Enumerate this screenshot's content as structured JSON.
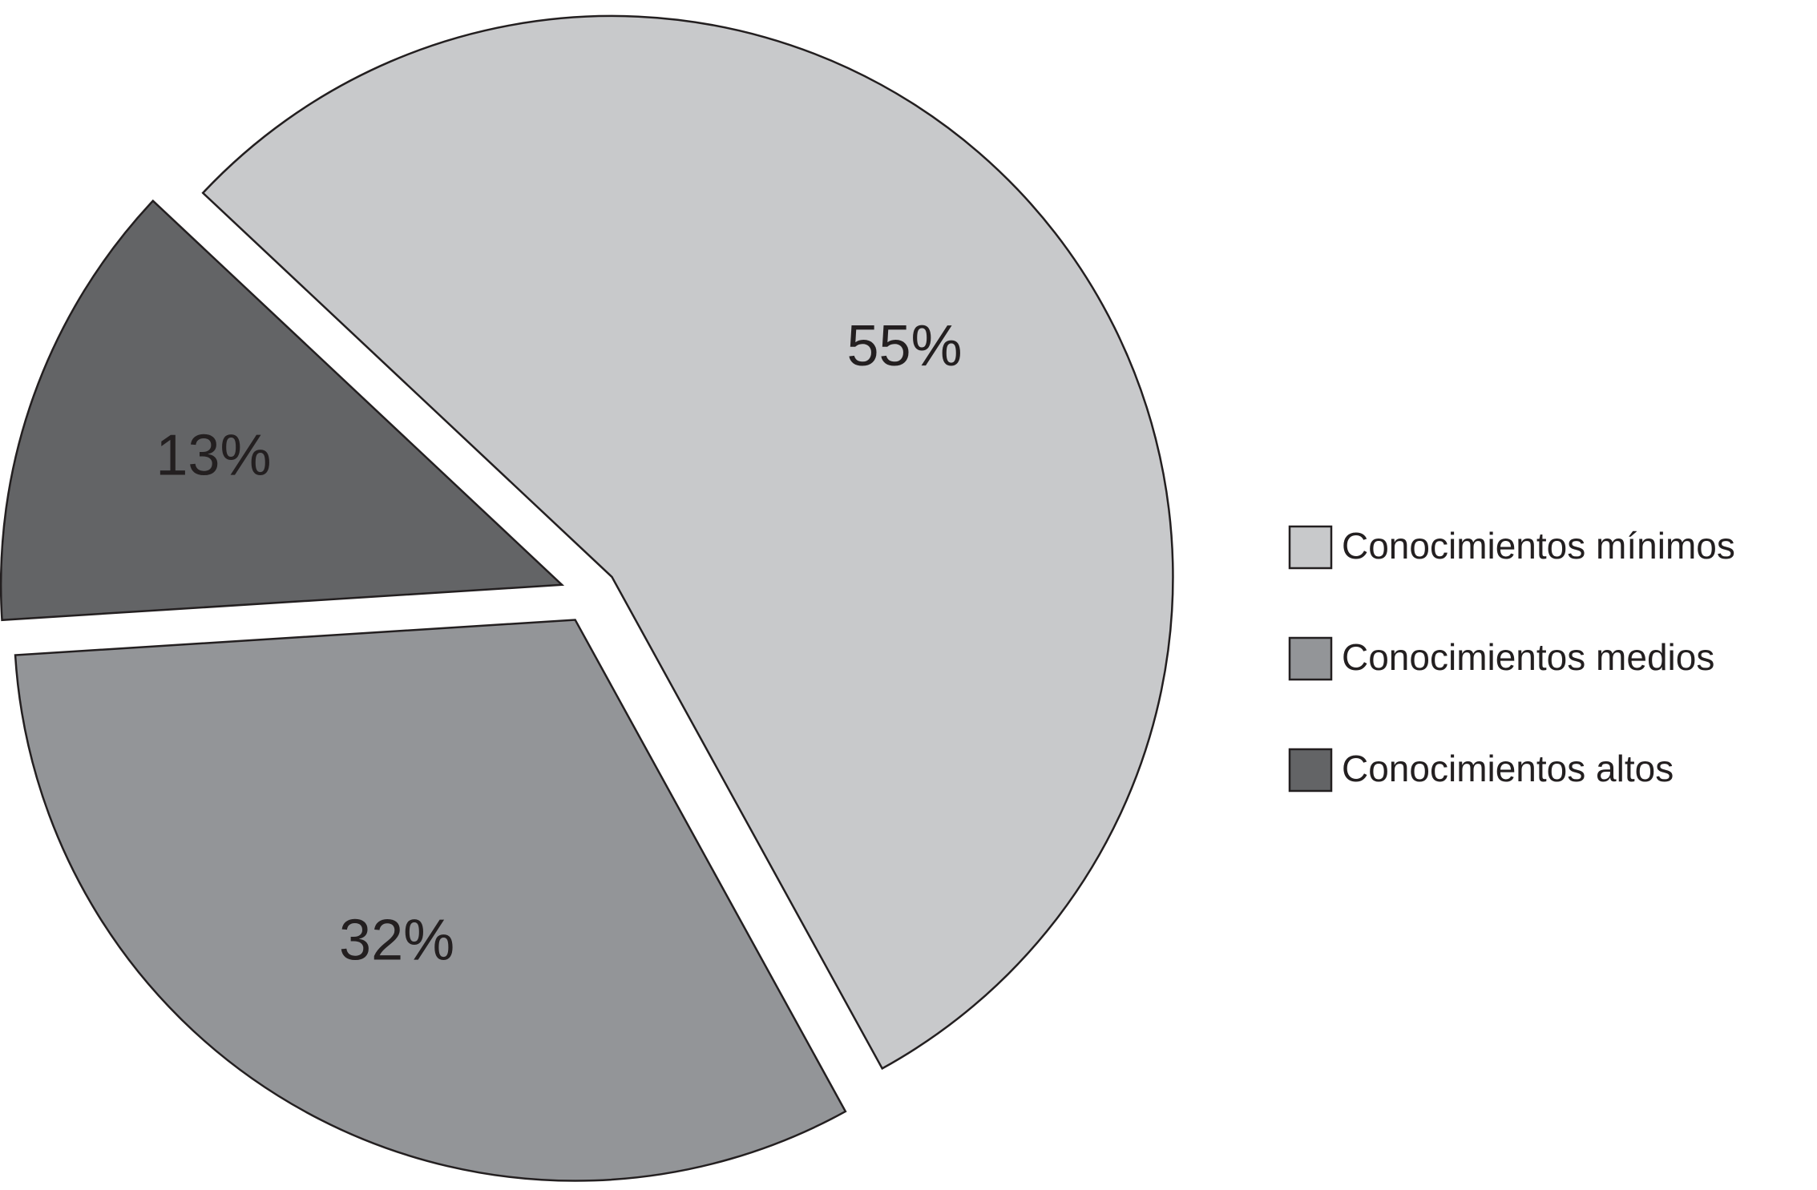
{
  "chart_data": {
    "type": "pie",
    "categories": [
      "Conocimientos mínimos",
      "Conocimientos medios",
      "Conocimientos altos"
    ],
    "values": [
      55,
      32,
      13
    ],
    "value_labels": [
      "55%",
      "32%",
      "13%"
    ],
    "colors": [
      "#c8c9cb",
      "#939598",
      "#636466"
    ],
    "exploded": true
  }
}
